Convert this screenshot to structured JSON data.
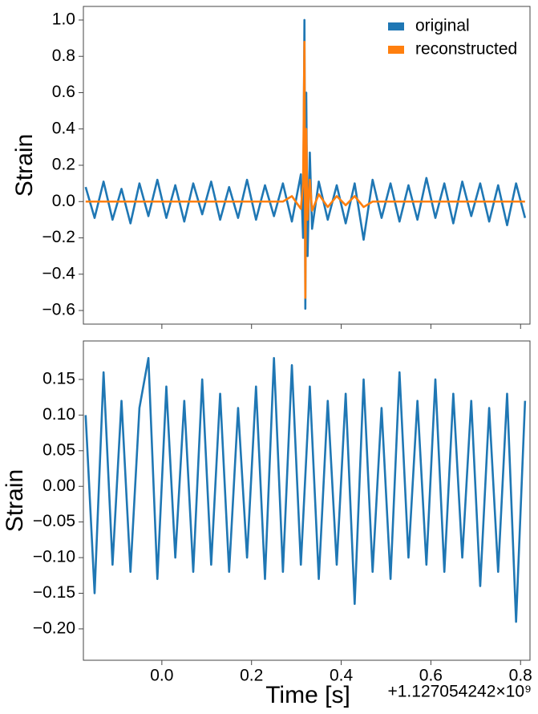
{
  "chart_data": [
    {
      "type": "line",
      "ylabel": "Strain",
      "legend": "upper right",
      "x": [
        -0.17,
        -0.15,
        -0.13,
        -0.11,
        -0.09,
        -0.07,
        -0.05,
        -0.03,
        -0.01,
        0.01,
        0.03,
        0.05,
        0.07,
        0.09,
        0.11,
        0.13,
        0.15,
        0.17,
        0.19,
        0.21,
        0.23,
        0.25,
        0.27,
        0.29,
        0.31,
        0.315,
        0.318,
        0.32,
        0.322,
        0.325,
        0.33,
        0.335,
        0.35,
        0.37,
        0.39,
        0.41,
        0.43,
        0.45,
        0.47,
        0.49,
        0.51,
        0.53,
        0.55,
        0.57,
        0.59,
        0.61,
        0.63,
        0.65,
        0.67,
        0.69,
        0.71,
        0.73,
        0.75,
        0.77,
        0.79,
        0.81
      ],
      "series": [
        {
          "name": "original",
          "color": "#1f77b4",
          "values": [
            0.08,
            -0.09,
            0.11,
            -0.1,
            0.07,
            -0.12,
            0.1,
            -0.08,
            0.12,
            -0.09,
            0.09,
            -0.11,
            0.1,
            -0.07,
            0.11,
            -0.1,
            0.08,
            -0.09,
            0.12,
            -0.1,
            0.09,
            -0.08,
            0.1,
            -0.11,
            0.15,
            -0.2,
            1.0,
            -0.59,
            0.6,
            -0.3,
            0.27,
            -0.15,
            0.11,
            -0.1,
            0.09,
            -0.12,
            0.1,
            -0.21,
            0.12,
            -0.09,
            0.1,
            -0.11,
            0.09,
            -0.1,
            0.13,
            -0.09,
            0.1,
            -0.12,
            0.11,
            -0.08,
            0.1,
            -0.11,
            0.09,
            -0.13,
            0.1,
            -0.09
          ]
        },
        {
          "name": "reconstructed",
          "color": "#ff7f0e",
          "values": [
            0,
            0,
            0,
            0,
            0,
            0,
            0,
            0,
            0,
            0,
            0,
            0,
            0,
            0,
            0,
            0,
            0,
            0,
            0,
            0,
            0,
            0,
            0,
            0.03,
            -0.04,
            0.1,
            0.88,
            -0.53,
            0.4,
            -0.1,
            0.12,
            -0.05,
            0.04,
            -0.03,
            0.03,
            -0.02,
            0.03,
            -0.03,
            0,
            0,
            0,
            0,
            0,
            0,
            0,
            0,
            0,
            0,
            0,
            0,
            0,
            0,
            0,
            0,
            0,
            0
          ]
        }
      ],
      "xlim": [
        -0.175,
        0.821
      ],
      "ylim": [
        -0.675,
        1.075
      ],
      "yticks": [
        {
          "value": -0.6,
          "label": "−0.6"
        },
        {
          "value": -0.4,
          "label": "−0.4"
        },
        {
          "value": -0.2,
          "label": "−0.2"
        },
        {
          "value": 0,
          "label": "0.0"
        },
        0.2,
        0.4,
        0.6,
        0.8,
        {
          "value": 1,
          "label": "1.0"
        }
      ]
    },
    {
      "type": "line",
      "ylabel": "Strain",
      "xlabel": "Time [s]",
      "offset_text": "+1.127054242×10⁹",
      "color": "#1f77b4",
      "x": [
        -0.17,
        -0.15,
        -0.13,
        -0.11,
        -0.09,
        -0.07,
        -0.05,
        -0.03,
        -0.01,
        0.01,
        0.03,
        0.05,
        0.07,
        0.09,
        0.11,
        0.13,
        0.15,
        0.17,
        0.19,
        0.21,
        0.23,
        0.25,
        0.27,
        0.29,
        0.31,
        0.33,
        0.35,
        0.37,
        0.39,
        0.41,
        0.43,
        0.45,
        0.47,
        0.49,
        0.51,
        0.53,
        0.55,
        0.57,
        0.59,
        0.61,
        0.63,
        0.65,
        0.67,
        0.69,
        0.71,
        0.73,
        0.75,
        0.77,
        0.79,
        0.81
      ],
      "values": [
        0.1,
        -0.15,
        0.16,
        -0.11,
        0.12,
        -0.12,
        0.11,
        0.18,
        -0.13,
        0.14,
        -0.1,
        0.12,
        -0.12,
        0.15,
        -0.11,
        0.13,
        -0.12,
        0.11,
        -0.1,
        0.14,
        -0.13,
        0.18,
        -0.12,
        0.17,
        -0.11,
        0.14,
        -0.13,
        0.12,
        -0.11,
        0.13,
        -0.165,
        0.15,
        -0.12,
        0.11,
        -0.13,
        0.16,
        -0.1,
        0.12,
        -0.11,
        0.15,
        -0.12,
        0.13,
        -0.1,
        0.12,
        -0.14,
        0.11,
        -0.12,
        0.13,
        -0.19,
        0.12
      ],
      "xlim": [
        -0.175,
        0.821
      ],
      "ylim": [
        -0.244,
        0.204
      ],
      "xticks": [
        {
          "value": 0,
          "label": "0.0"
        },
        0.2,
        0.4,
        0.6,
        0.8
      ],
      "yticks": [
        {
          "value": -0.2,
          "label": "−0.20"
        },
        {
          "value": -0.15,
          "label": "−0.15"
        },
        {
          "value": -0.1,
          "label": "−0.10"
        },
        {
          "value": -0.05,
          "label": "−0.05"
        },
        {
          "value": 0,
          "label": "0.00"
        },
        0.05,
        {
          "value": 0.1,
          "label": "0.10"
        },
        0.15
      ]
    }
  ]
}
